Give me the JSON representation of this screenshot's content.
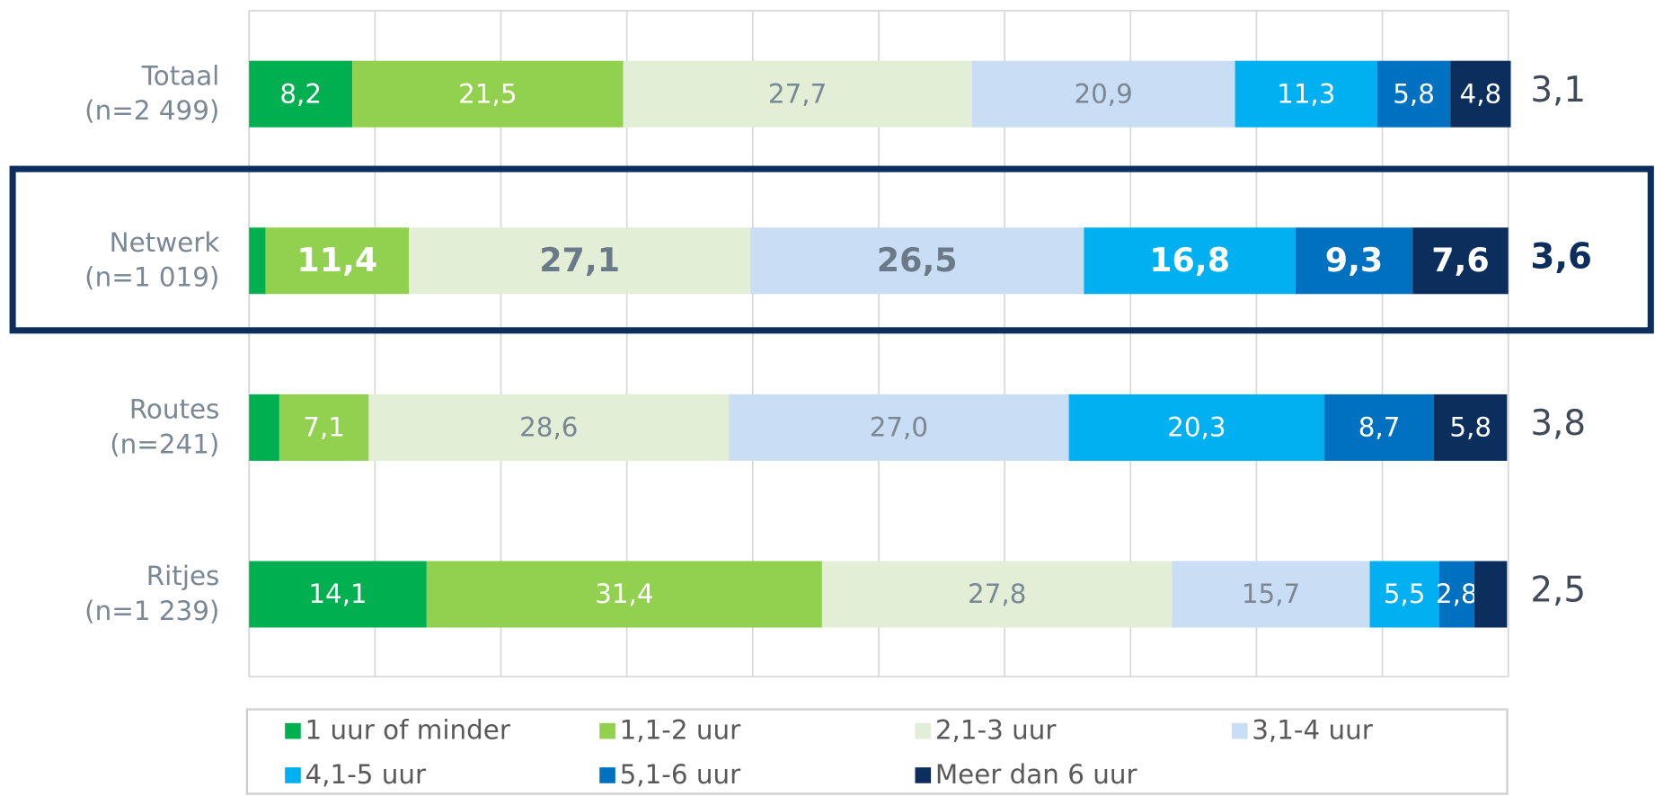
{
  "chart_data": {
    "type": "stacked-bar-horizontal",
    "categories": [
      [
        "Totaal",
        "(n=2 499)"
      ],
      [
        "Netwerk",
        "(n=1 019)"
      ],
      [
        "Routes",
        "(n=241)"
      ],
      [
        "Ritjes",
        "(n=1 239)"
      ]
    ],
    "series": [
      {
        "name": "1 uur of minder",
        "color": "#00b050",
        "label_color": "#ffffff",
        "values": [
          8.2,
          1.3,
          2.4,
          14.1
        ],
        "value_labels": [
          "8,2",
          null,
          null,
          "14,1"
        ]
      },
      {
        "name": "1,1-2 uur",
        "color": "#92d050",
        "label_color": "#ffffff",
        "values": [
          21.5,
          11.4,
          7.1,
          31.4
        ],
        "value_labels": [
          "21,5",
          "11,4",
          "7,1",
          "31,4"
        ]
      },
      {
        "name": "2,1-3 uur",
        "color": "#e3eed6",
        "label_color": "#7a8794",
        "values": [
          27.7,
          27.1,
          28.6,
          27.8
        ],
        "value_labels": [
          "27,7",
          "27,1",
          "28,6",
          "27,8"
        ]
      },
      {
        "name": "3,1-4 uur",
        "color": "#c9def4",
        "label_color": "#7a8794",
        "values": [
          20.9,
          26.5,
          27.0,
          15.7
        ],
        "value_labels": [
          "20,9",
          "26,5",
          "27,0",
          "15,7"
        ]
      },
      {
        "name": "4,1-5 uur",
        "color": "#00b0f0",
        "label_color": "#ffffff",
        "values": [
          11.3,
          16.8,
          20.3,
          5.5
        ],
        "value_labels": [
          "11,3",
          "16,8",
          "20,3",
          "5,5"
        ]
      },
      {
        "name": "5,1-6 uur",
        "color": "#0070c0",
        "label_color": "#ffffff",
        "values": [
          5.8,
          9.3,
          8.7,
          2.8
        ],
        "value_labels": [
          "5,8",
          "9,3",
          "8,7",
          "2,8"
        ]
      },
      {
        "name": "Meer dan 6 uur",
        "color": "#0b2e5c",
        "label_color": "#ffffff",
        "values": [
          4.8,
          7.6,
          5.8,
          2.6
        ],
        "value_labels": [
          "4,8",
          "7,6",
          "5,8",
          null
        ]
      }
    ],
    "averages": [
      3.1,
      3.6,
      3.8,
      2.5
    ],
    "average_labels": [
      "3,1",
      "3,6",
      "3,8",
      "2,5"
    ],
    "highlight": 1,
    "xlim": [
      0,
      100
    ],
    "xticks": [
      0,
      10,
      20,
      30,
      40,
      50,
      60,
      70,
      80,
      90,
      100
    ],
    "grid": true
  }
}
